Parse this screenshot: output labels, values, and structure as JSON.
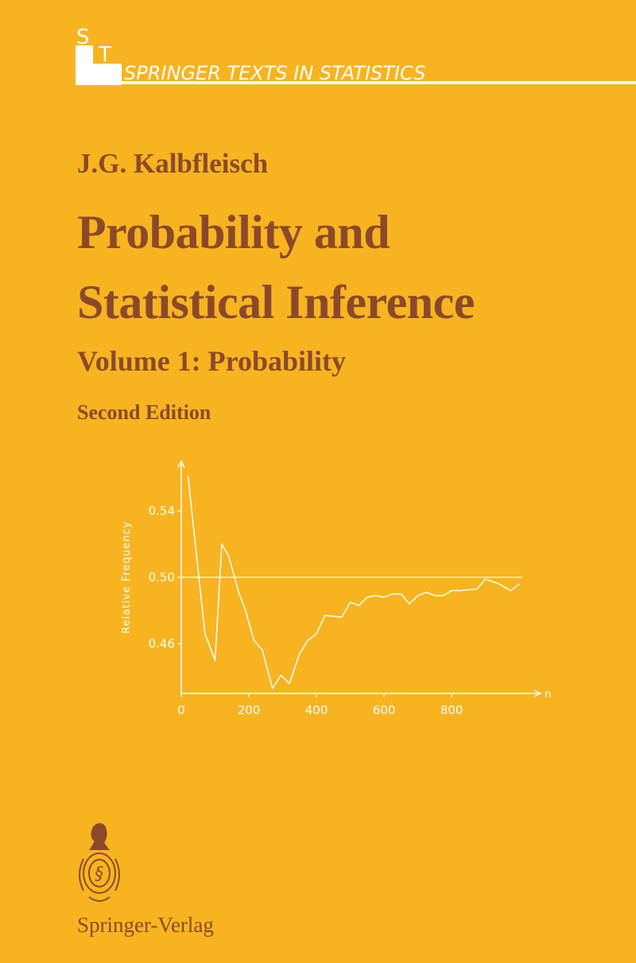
{
  "series_logo": [
    "S",
    "T"
  ],
  "series": "SPRINGER TEXTS IN STATISTICS",
  "author": "J.G. Kalbfleisch",
  "title_lines": [
    "Probability and",
    "Statistical Inference"
  ],
  "volume": "Volume 1: Probability",
  "edition": "Second Edition",
  "publisher": "Springer-Verlag",
  "chart_data": {
    "type": "line",
    "y_label": "Relative Frequency",
    "x_label": "n",
    "color": "#ffffff",
    "x": [
      20,
      70,
      100,
      120,
      140,
      170,
      190,
      215,
      240,
      270,
      295,
      320,
      350,
      375,
      400,
      425,
      475,
      500,
      525,
      550,
      575,
      600,
      625,
      650,
      675,
      700,
      725,
      750,
      775,
      800,
      825,
      875,
      900,
      940,
      975,
      1000
    ],
    "values": [
      0.561,
      0.466,
      0.45,
      0.52,
      0.513,
      0.491,
      0.48,
      0.462,
      0.456,
      0.433,
      0.441,
      0.436,
      0.454,
      0.462,
      0.466,
      0.477,
      0.476,
      0.485,
      0.483,
      0.488,
      0.489,
      0.488,
      0.49,
      0.49,
      0.484,
      0.489,
      0.491,
      0.489,
      0.489,
      0.492,
      0.492,
      0.493,
      0.499,
      0.496,
      0.492,
      0.496
    ],
    "reference_line": 0.5,
    "xlim": [
      0,
      1063
    ],
    "ylim": [
      0.43,
      0.57
    ],
    "xticks": [
      0,
      200,
      400,
      600,
      800
    ],
    "yticks": [
      0.46,
      {
        "value": 0.5,
        "label": "0.50"
      },
      0.54
    ]
  }
}
